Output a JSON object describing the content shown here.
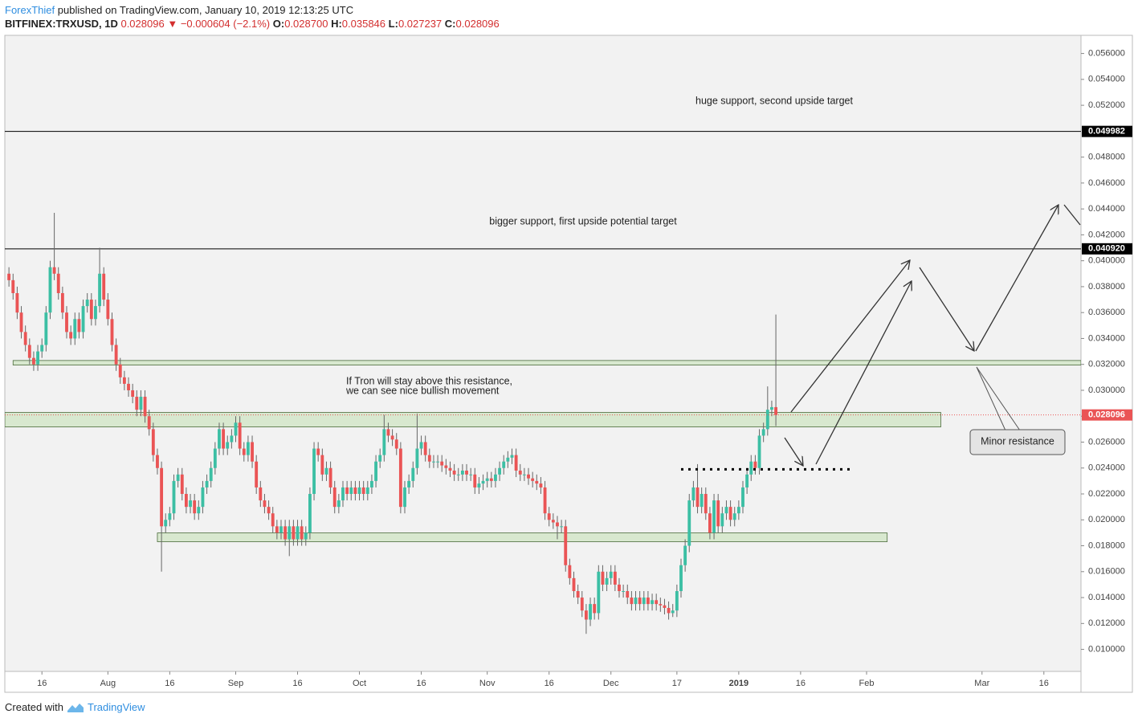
{
  "header": {
    "author": "ForexThief",
    "published": " published on TradingView.com, January 10, 2019 12:13:25 UTC",
    "symbol": "BITFINEX:TRXUSD, 1D",
    "last": "0.028096",
    "arrow": "▼",
    "change": "−0.000604 (−2.1%)",
    "ohlc": [
      {
        "label": "O:",
        "value": "0.028700"
      },
      {
        "label": "H:",
        "value": "0.035846"
      },
      {
        "label": "L:",
        "value": "0.027237"
      },
      {
        "label": "C:",
        "value": "0.028096"
      }
    ]
  },
  "footer": {
    "text": "Created with",
    "brand": "TradingView"
  },
  "chart_data": {
    "type": "candlestick",
    "up_color": "#3cbfa4",
    "down_color": "#ea5455",
    "x": [
      "2018-07-08",
      "2018-07-09",
      "2018-07-10",
      "2018-07-11",
      "2018-07-12",
      "2018-07-13",
      "2018-07-14",
      "2018-07-15",
      "2018-07-16",
      "2018-07-17",
      "2018-07-18",
      "2018-07-19",
      "2018-07-20",
      "2018-07-21",
      "2018-07-22",
      "2018-07-23",
      "2018-07-24",
      "2018-07-25",
      "2018-07-26",
      "2018-07-27",
      "2018-07-28",
      "2018-07-29",
      "2018-07-30",
      "2018-07-31",
      "2018-08-01",
      "2018-08-02",
      "2018-08-03",
      "2018-08-04",
      "2018-08-05",
      "2018-08-06",
      "2018-08-07",
      "2018-08-08",
      "2018-08-09",
      "2018-08-10",
      "2018-08-11",
      "2018-08-12",
      "2018-08-13",
      "2018-08-14",
      "2018-08-15",
      "2018-08-16",
      "2018-08-17",
      "2018-08-18",
      "2018-08-19",
      "2018-08-20",
      "2018-08-21",
      "2018-08-22",
      "2018-08-23",
      "2018-08-24",
      "2018-08-25",
      "2018-08-26",
      "2018-08-27",
      "2018-08-28",
      "2018-08-29",
      "2018-08-30",
      "2018-08-31",
      "2018-09-01",
      "2018-09-02",
      "2018-09-03",
      "2018-09-04",
      "2018-09-05",
      "2018-09-06",
      "2018-09-07",
      "2018-09-08",
      "2018-09-09",
      "2018-09-10",
      "2018-09-11",
      "2018-09-12",
      "2018-09-13",
      "2018-09-14",
      "2018-09-15",
      "2018-09-16",
      "2018-09-17",
      "2018-09-18",
      "2018-09-19",
      "2018-09-20",
      "2018-09-21",
      "2018-09-22",
      "2018-09-23",
      "2018-09-24",
      "2018-09-25",
      "2018-09-26",
      "2018-09-27",
      "2018-09-28",
      "2018-09-29",
      "2018-09-30",
      "2018-10-01",
      "2018-10-02",
      "2018-10-03",
      "2018-10-04",
      "2018-10-05",
      "2018-10-06",
      "2018-10-07",
      "2018-10-08",
      "2018-10-09",
      "2018-10-10",
      "2018-10-11",
      "2018-10-12",
      "2018-10-13",
      "2018-10-14",
      "2018-10-15",
      "2018-10-16",
      "2018-10-17",
      "2018-10-18",
      "2018-10-19",
      "2018-10-20",
      "2018-10-21",
      "2018-10-22",
      "2018-10-23",
      "2018-10-24",
      "2018-10-25",
      "2018-10-26",
      "2018-10-27",
      "2018-10-28",
      "2018-10-29",
      "2018-10-30",
      "2018-10-31",
      "2018-11-01",
      "2018-11-02",
      "2018-11-03",
      "2018-11-04",
      "2018-11-05",
      "2018-11-06",
      "2018-11-07",
      "2018-11-08",
      "2018-11-09",
      "2018-11-10",
      "2018-11-11",
      "2018-11-12",
      "2018-11-13",
      "2018-11-14",
      "2018-11-15",
      "2018-11-16",
      "2018-11-17",
      "2018-11-18",
      "2018-11-19",
      "2018-11-20",
      "2018-11-21",
      "2018-11-22",
      "2018-11-23",
      "2018-11-24",
      "2018-11-25",
      "2018-11-26",
      "2018-11-27",
      "2018-11-28",
      "2018-11-29",
      "2018-11-30",
      "2018-12-01",
      "2018-12-02",
      "2018-12-03",
      "2018-12-04",
      "2018-12-05",
      "2018-12-06",
      "2018-12-07",
      "2018-12-08",
      "2018-12-09",
      "2018-12-10",
      "2018-12-11",
      "2018-12-12",
      "2018-12-13",
      "2018-12-14",
      "2018-12-15",
      "2018-12-16",
      "2018-12-17",
      "2018-12-18",
      "2018-12-19",
      "2018-12-20",
      "2018-12-21",
      "2018-12-22",
      "2018-12-23",
      "2018-12-24",
      "2018-12-25",
      "2018-12-26",
      "2018-12-27",
      "2018-12-28",
      "2018-12-29",
      "2018-12-30",
      "2018-12-31",
      "2019-01-01",
      "2019-01-02",
      "2019-01-03",
      "2019-01-04",
      "2019-01-05",
      "2019-01-06",
      "2019-01-07",
      "2019-01-08",
      "2019-01-09",
      "2019-01-10"
    ],
    "open": [
      0.039,
      0.0385,
      0.0375,
      0.036,
      0.0345,
      0.0335,
      0.0325,
      0.032,
      0.033,
      0.0335,
      0.036,
      0.0395,
      0.039,
      0.0375,
      0.036,
      0.0345,
      0.034,
      0.0355,
      0.0345,
      0.0365,
      0.037,
      0.0355,
      0.0365,
      0.039,
      0.037,
      0.0355,
      0.0335,
      0.032,
      0.031,
      0.0305,
      0.03,
      0.0295,
      0.0285,
      0.0295,
      0.028,
      0.027,
      0.025,
      0.024,
      0.0195,
      0.02,
      0.0205,
      0.023,
      0.0235,
      0.022,
      0.021,
      0.0215,
      0.0205,
      0.021,
      0.0225,
      0.023,
      0.024,
      0.0255,
      0.027,
      0.0255,
      0.026,
      0.0265,
      0.0275,
      0.0255,
      0.025,
      0.026,
      0.0245,
      0.0225,
      0.0215,
      0.021,
      0.0205,
      0.0195,
      0.019,
      0.0195,
      0.0185,
      0.0195,
      0.0185,
      0.0195,
      0.0185,
      0.019,
      0.022,
      0.0255,
      0.025,
      0.0235,
      0.024,
      0.0225,
      0.021,
      0.0215,
      0.0225,
      0.022,
      0.0225,
      0.022,
      0.0225,
      0.022,
      0.0225,
      0.023,
      0.0245,
      0.025,
      0.027,
      0.0265,
      0.0262,
      0.0255,
      0.021,
      0.0225,
      0.023,
      0.024,
      0.0255,
      0.026,
      0.025,
      0.0245,
      0.0245,
      0.0245,
      0.0242,
      0.024,
      0.0238,
      0.0235,
      0.0235,
      0.0238,
      0.0235,
      0.0235,
      0.0225,
      0.0228,
      0.023,
      0.0232,
      0.023,
      0.0235,
      0.024,
      0.0245,
      0.0248,
      0.025,
      0.0238,
      0.0235,
      0.0235,
      0.0232,
      0.023,
      0.0228,
      0.0225,
      0.0205,
      0.02,
      0.0198,
      0.0195,
      0.0195,
      0.0165,
      0.0155,
      0.0145,
      0.014,
      0.013,
      0.0123,
      0.0135,
      0.0128,
      0.016,
      0.015,
      0.0155,
      0.016,
      0.015,
      0.0145,
      0.0145,
      0.014,
      0.0135,
      0.014,
      0.0135,
      0.014,
      0.0135,
      0.0138,
      0.0135,
      0.0134,
      0.0132,
      0.0128,
      0.013,
      0.0145,
      0.0165,
      0.018,
      0.0215,
      0.0225,
      0.021,
      0.022,
      0.0205,
      0.019,
      0.0215,
      0.0195,
      0.0205,
      0.021,
      0.02,
      0.0205,
      0.021,
      0.0225,
      0.0235,
      0.0245,
      0.024,
      0.0265,
      0.027,
      0.0285,
      0.0287
    ],
    "high": [
      0.0395,
      0.039,
      0.038,
      0.0365,
      0.035,
      0.034,
      0.033,
      0.0335,
      0.034,
      0.0365,
      0.04,
      0.0437,
      0.0395,
      0.038,
      0.0365,
      0.035,
      0.036,
      0.036,
      0.037,
      0.0375,
      0.0375,
      0.037,
      0.041,
      0.0395,
      0.0375,
      0.036,
      0.034,
      0.0325,
      0.0315,
      0.031,
      0.0305,
      0.03,
      0.03,
      0.03,
      0.0285,
      0.0275,
      0.0255,
      0.0245,
      0.0205,
      0.021,
      0.0235,
      0.024,
      0.024,
      0.0225,
      0.022,
      0.022,
      0.0215,
      0.023,
      0.0235,
      0.0245,
      0.026,
      0.0275,
      0.0275,
      0.0265,
      0.027,
      0.028,
      0.028,
      0.026,
      0.0265,
      0.0265,
      0.025,
      0.023,
      0.022,
      0.0215,
      0.021,
      0.02,
      0.02,
      0.02,
      0.02,
      0.02,
      0.02,
      0.02,
      0.0195,
      0.0225,
      0.026,
      0.026,
      0.0255,
      0.0245,
      0.0245,
      0.023,
      0.022,
      0.023,
      0.023,
      0.023,
      0.023,
      0.023,
      0.023,
      0.023,
      0.0235,
      0.025,
      0.0255,
      0.0281,
      0.0275,
      0.027,
      0.0267,
      0.026,
      0.023,
      0.0235,
      0.0245,
      0.0282,
      0.0265,
      0.0265,
      0.0255,
      0.025,
      0.025,
      0.025,
      0.0247,
      0.0245,
      0.0243,
      0.024,
      0.0243,
      0.0243,
      0.024,
      0.024,
      0.0233,
      0.0235,
      0.0237,
      0.0237,
      0.024,
      0.0245,
      0.025,
      0.0253,
      0.0255,
      0.0255,
      0.0243,
      0.024,
      0.024,
      0.0237,
      0.0235,
      0.0233,
      0.023,
      0.021,
      0.0205,
      0.0203,
      0.02,
      0.02,
      0.017,
      0.016,
      0.015,
      0.0145,
      0.0135,
      0.014,
      0.014,
      0.0165,
      0.0165,
      0.016,
      0.0165,
      0.0165,
      0.0155,
      0.015,
      0.015,
      0.0145,
      0.0145,
      0.0145,
      0.0145,
      0.0145,
      0.0143,
      0.0143,
      0.014,
      0.0139,
      0.0137,
      0.0135,
      0.015,
      0.017,
      0.0185,
      0.022,
      0.023,
      0.0243,
      0.0225,
      0.0225,
      0.021,
      0.022,
      0.022,
      0.021,
      0.0215,
      0.0215,
      0.021,
      0.0215,
      0.023,
      0.024,
      0.025,
      0.025,
      0.027,
      0.0275,
      0.0303,
      0.0292,
      0.035846
    ],
    "low": [
      0.038,
      0.037,
      0.0355,
      0.034,
      0.033,
      0.032,
      0.0315,
      0.0315,
      0.0325,
      0.033,
      0.0355,
      0.0385,
      0.037,
      0.0355,
      0.034,
      0.0335,
      0.0335,
      0.034,
      0.034,
      0.036,
      0.035,
      0.035,
      0.036,
      0.0365,
      0.035,
      0.033,
      0.0315,
      0.0305,
      0.03,
      0.0295,
      0.029,
      0.028,
      0.028,
      0.0275,
      0.0265,
      0.0245,
      0.0235,
      0.016,
      0.019,
      0.0195,
      0.02,
      0.0225,
      0.0215,
      0.0205,
      0.0205,
      0.02,
      0.02,
      0.0205,
      0.022,
      0.0225,
      0.0235,
      0.025,
      0.025,
      0.025,
      0.0255,
      0.026,
      0.025,
      0.0245,
      0.0245,
      0.024,
      0.022,
      0.021,
      0.0205,
      0.02,
      0.019,
      0.0185,
      0.0185,
      0.018,
      0.0172,
      0.018,
      0.018,
      0.018,
      0.018,
      0.0185,
      0.0215,
      0.0245,
      0.023,
      0.023,
      0.022,
      0.0205,
      0.0205,
      0.021,
      0.0215,
      0.0215,
      0.0215,
      0.0215,
      0.0215,
      0.0215,
      0.022,
      0.0225,
      0.024,
      0.0245,
      0.026,
      0.0257,
      0.025,
      0.0205,
      0.0205,
      0.022,
      0.0225,
      0.0235,
      0.025,
      0.0245,
      0.024,
      0.024,
      0.024,
      0.0237,
      0.0235,
      0.0233,
      0.023,
      0.023,
      0.023,
      0.023,
      0.023,
      0.022,
      0.022,
      0.0223,
      0.0225,
      0.0225,
      0.0225,
      0.023,
      0.0235,
      0.024,
      0.0243,
      0.0233,
      0.023,
      0.023,
      0.0227,
      0.0225,
      0.0223,
      0.022,
      0.02,
      0.0195,
      0.0193,
      0.0185,
      0.019,
      0.016,
      0.015,
      0.014,
      0.0135,
      0.0125,
      0.0112,
      0.0118,
      0.0123,
      0.0123,
      0.0145,
      0.0145,
      0.015,
      0.0145,
      0.014,
      0.014,
      0.0135,
      0.013,
      0.013,
      0.013,
      0.013,
      0.013,
      0.013,
      0.013,
      0.0129,
      0.0127,
      0.0123,
      0.0125,
      0.0125,
      0.014,
      0.016,
      0.0175,
      0.021,
      0.0205,
      0.0205,
      0.02,
      0.0185,
      0.0185,
      0.019,
      0.019,
      0.02,
      0.0195,
      0.0195,
      0.02,
      0.0205,
      0.022,
      0.023,
      0.0235,
      0.0235,
      0.026,
      0.0265,
      0.028,
      0.027237
    ],
    "close": [
      0.0385,
      0.0375,
      0.036,
      0.0345,
      0.0335,
      0.0325,
      0.032,
      0.033,
      0.0335,
      0.036,
      0.0395,
      0.039,
      0.0375,
      0.036,
      0.0345,
      0.034,
      0.0355,
      0.0345,
      0.0365,
      0.037,
      0.0355,
      0.0365,
      0.039,
      0.037,
      0.0355,
      0.0335,
      0.032,
      0.031,
      0.0305,
      0.03,
      0.0295,
      0.0285,
      0.0295,
      0.028,
      0.027,
      0.025,
      0.024,
      0.0195,
      0.02,
      0.0205,
      0.023,
      0.0235,
      0.022,
      0.021,
      0.0215,
      0.0205,
      0.021,
      0.0225,
      0.023,
      0.024,
      0.0255,
      0.027,
      0.0255,
      0.026,
      0.0265,
      0.0275,
      0.0255,
      0.025,
      0.026,
      0.0245,
      0.0225,
      0.0215,
      0.021,
      0.0205,
      0.0195,
      0.019,
      0.0195,
      0.0185,
      0.0195,
      0.0185,
      0.0195,
      0.0185,
      0.019,
      0.022,
      0.0255,
      0.025,
      0.0235,
      0.024,
      0.0225,
      0.021,
      0.0215,
      0.0225,
      0.022,
      0.0225,
      0.022,
      0.0225,
      0.022,
      0.0225,
      0.023,
      0.0245,
      0.025,
      0.027,
      0.0265,
      0.0262,
      0.0255,
      0.021,
      0.0225,
      0.023,
      0.024,
      0.0255,
      0.026,
      0.025,
      0.0245,
      0.0245,
      0.0245,
      0.0242,
      0.024,
      0.0238,
      0.0235,
      0.0235,
      0.0238,
      0.0235,
      0.0235,
      0.0225,
      0.0228,
      0.023,
      0.0232,
      0.023,
      0.0235,
      0.024,
      0.0245,
      0.0248,
      0.025,
      0.0238,
      0.0235,
      0.0235,
      0.0232,
      0.023,
      0.0228,
      0.0225,
      0.0205,
      0.02,
      0.0198,
      0.0195,
      0.0195,
      0.0165,
      0.0155,
      0.0145,
      0.014,
      0.013,
      0.0123,
      0.0135,
      0.0128,
      0.016,
      0.015,
      0.0155,
      0.016,
      0.015,
      0.0145,
      0.0145,
      0.014,
      0.0135,
      0.014,
      0.0135,
      0.014,
      0.0135,
      0.0138,
      0.0135,
      0.0134,
      0.0132,
      0.0128,
      0.013,
      0.0145,
      0.0165,
      0.018,
      0.0215,
      0.0225,
      0.021,
      0.022,
      0.0205,
      0.019,
      0.0215,
      0.0195,
      0.0205,
      0.021,
      0.02,
      0.0205,
      0.021,
      0.0225,
      0.0235,
      0.0245,
      0.024,
      0.0265,
      0.027,
      0.0285,
      0.0287,
      0.028096
    ],
    "xlim": [
      "2018-07-07",
      "2019-03-25"
    ],
    "xticks": [
      {
        "value": "2018-07-16",
        "label": "16"
      },
      {
        "value": "2018-08-01",
        "label": "Aug"
      },
      {
        "value": "2018-08-16",
        "label": "16"
      },
      {
        "value": "2018-09-01",
        "label": "Sep"
      },
      {
        "value": "2018-09-16",
        "label": "16"
      },
      {
        "value": "2018-10-01",
        "label": "Oct"
      },
      {
        "value": "2018-10-16",
        "label": "16"
      },
      {
        "value": "2018-11-01",
        "label": "Nov"
      },
      {
        "value": "2018-11-16",
        "label": "16"
      },
      {
        "value": "2018-12-01",
        "label": "Dec"
      },
      {
        "value": "2018-12-17",
        "label": "17"
      },
      {
        "value": "2019-01-01",
        "label": "2019"
      },
      {
        "value": "2019-01-16",
        "label": "16"
      },
      {
        "value": "2019-02-01",
        "label": "Feb"
      },
      {
        "value": "2019-03-01",
        "label": "Mar"
      },
      {
        "value": "2019-03-16",
        "label": "16"
      }
    ],
    "ylim": [
      0.0083,
      0.0574
    ],
    "yticks": [
      {
        "value": 0.01,
        "label": "0.010000"
      },
      {
        "value": 0.012,
        "label": "0.012000"
      },
      {
        "value": 0.014,
        "label": "0.014000"
      },
      {
        "value": 0.016,
        "label": "0.016000"
      },
      {
        "value": 0.018,
        "label": "0.018000"
      },
      {
        "value": 0.02,
        "label": "0.020000"
      },
      {
        "value": 0.022,
        "label": "0.022000"
      },
      {
        "value": 0.024,
        "label": "0.024000"
      },
      {
        "value": 0.026,
        "label": "0.026000"
      },
      {
        "value": 0.028,
        "label": "0.028000"
      },
      {
        "value": 0.03,
        "label": "0.030000"
      },
      {
        "value": 0.032,
        "label": "0.032000"
      },
      {
        "value": 0.034,
        "label": "0.034000"
      },
      {
        "value": 0.036,
        "label": "0.036000"
      },
      {
        "value": 0.038,
        "label": "0.038000"
      },
      {
        "value": 0.04,
        "label": "0.040000"
      },
      {
        "value": 0.042,
        "label": "0.042000"
      },
      {
        "value": 0.044,
        "label": "0.044000"
      },
      {
        "value": 0.046,
        "label": "0.046000"
      },
      {
        "value": 0.048,
        "label": "0.048000"
      },
      {
        "value": 0.052,
        "label": "0.052000"
      },
      {
        "value": 0.054,
        "label": "0.054000"
      },
      {
        "value": 0.056,
        "label": "0.056000"
      }
    ],
    "last_price": 0.028096,
    "hlines": [
      0.049982,
      {
        "value": 0.04092,
        "label": "0.040920"
      }
    ],
    "zones": [
      {
        "ylim": [
          0.03195,
          0.0323
        ],
        "xlim": [
          "2018-07-09",
          "2019-03-25"
        ]
      },
      {
        "ylim": [
          0.02717,
          0.02829
        ],
        "xlim": [
          "2018-07-07",
          "2019-02-19"
        ]
      },
      {
        "ylim": [
          0.01831,
          0.01899
        ],
        "xlim": [
          "2018-08-13",
          "2019-02-06"
        ]
      }
    ],
    "dotted_level": {
      "value": 0.0239,
      "xlim": [
        "2018-12-18",
        "2019-01-29"
      ]
    },
    "annotations": [
      "huge support, second upside target",
      "bigger support, first upside potential target",
      "If Tron will stay above this resistance,",
      "we can see nice bullish movement",
      "Minor resistance"
    ]
  }
}
